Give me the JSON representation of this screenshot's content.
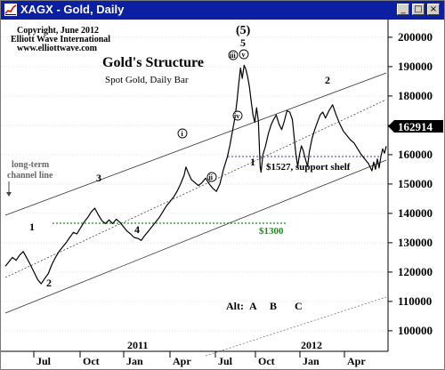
{
  "window": {
    "title": "XAGX - Gold, Daily",
    "buttons": [
      "minimize",
      "maximize",
      "close"
    ]
  },
  "chart_data": {
    "type": "line",
    "title": "Gold's Structure",
    "subtitle": "Spot Gold, Daily Bar",
    "copyright": [
      "Copyright, June 2012",
      "Elliott Wave International",
      "www.elliottwave.com"
    ],
    "ylim": [
      95000,
      210000
    ],
    "y_ticks": [
      100000,
      110000,
      120000,
      130000,
      140000,
      150000,
      160000,
      170000,
      180000,
      190000,
      200000
    ],
    "y_tick_labels": [
      "100000",
      "110000",
      "120000",
      "130000",
      "140000",
      "150000",
      "160000",
      "170000",
      "180000",
      "190000",
      "200000"
    ],
    "last_price_label": "162914",
    "x_tick_labels": [
      "Jul",
      "Oct",
      "Jan",
      "Apr",
      "Jul",
      "Oct",
      "Jan",
      "Apr"
    ],
    "year_labels": [
      "2011",
      "2012"
    ],
    "series": [
      {
        "values": [
          [
            0,
            122000
          ],
          [
            4,
            123500
          ],
          [
            8,
            125000
          ],
          [
            12,
            124000
          ],
          [
            16,
            125800
          ],
          [
            20,
            127000
          ],
          [
            24,
            124800
          ],
          [
            28,
            122500
          ],
          [
            32,
            120000
          ],
          [
            36,
            117500
          ],
          [
            40,
            116000
          ],
          [
            44,
            117800
          ],
          [
            48,
            119500
          ],
          [
            52,
            122500
          ],
          [
            56,
            125000
          ],
          [
            60,
            127000
          ],
          [
            64,
            128500
          ],
          [
            68,
            130000
          ],
          [
            72,
            131800
          ],
          [
            76,
            133500
          ],
          [
            80,
            133000
          ],
          [
            84,
            135000
          ],
          [
            88,
            137000
          ],
          [
            92,
            138500
          ],
          [
            96,
            140500
          ],
          [
            100,
            141800
          ],
          [
            104,
            139500
          ],
          [
            108,
            137500
          ],
          [
            112,
            136500
          ],
          [
            116,
            137800
          ],
          [
            120,
            136500
          ],
          [
            124,
            138000
          ],
          [
            128,
            137000
          ],
          [
            132,
            135500
          ],
          [
            136,
            134000
          ],
          [
            140,
            133000
          ],
          [
            144,
            131800
          ],
          [
            148,
            131500
          ],
          [
            152,
            130800
          ],
          [
            156,
            132500
          ],
          [
            160,
            134000
          ],
          [
            164,
            135500
          ],
          [
            168,
            137000
          ],
          [
            172,
            138500
          ],
          [
            176,
            140500
          ],
          [
            180,
            142500
          ],
          [
            184,
            144000
          ],
          [
            188,
            145500
          ],
          [
            192,
            147500
          ],
          [
            196,
            150000
          ],
          [
            200,
            153000
          ],
          [
            202,
            155800
          ],
          [
            205,
            153500
          ],
          [
            208,
            151500
          ],
          [
            212,
            150500
          ],
          [
            216,
            149500
          ],
          [
            220,
            150500
          ],
          [
            224,
            152000
          ],
          [
            228,
            150000
          ],
          [
            232,
            148500
          ],
          [
            236,
            147500
          ],
          [
            240,
            150000
          ],
          [
            244,
            155000
          ],
          [
            248,
            159000
          ],
          [
            251,
            163000
          ],
          [
            254,
            168000
          ],
          [
            257,
            173000
          ],
          [
            259,
            178000
          ],
          [
            261,
            184000
          ],
          [
            263,
            189500
          ],
          [
            265,
            186000
          ],
          [
            267,
            190500
          ],
          [
            269,
            189000
          ],
          [
            271,
            186500
          ],
          [
            273,
            183000
          ],
          [
            275,
            178000
          ],
          [
            277,
            173500
          ],
          [
            279,
            171000
          ],
          [
            281,
            176000
          ],
          [
            283,
            171500
          ],
          [
            285,
            156000
          ],
          [
            286,
            154000
          ],
          [
            288,
            160000
          ],
          [
            291,
            163000
          ],
          [
            294,
            167000
          ],
          [
            297,
            170000
          ],
          [
            300,
            172000
          ],
          [
            303,
            173500
          ],
          [
            306,
            170500
          ],
          [
            309,
            168500
          ],
          [
            312,
            171500
          ],
          [
            315,
            175000
          ],
          [
            318,
            174500
          ],
          [
            321,
            172000
          ],
          [
            323,
            166000
          ],
          [
            325,
            160000
          ],
          [
            327,
            156000
          ],
          [
            329,
            160000
          ],
          [
            331,
            163000
          ],
          [
            333,
            161500
          ],
          [
            336,
            158000
          ],
          [
            338,
            156000
          ],
          [
            340,
            161000
          ],
          [
            343,
            165500
          ],
          [
            346,
            168500
          ],
          [
            349,
            171000
          ],
          [
            352,
            173500
          ],
          [
            355,
            174500
          ],
          [
            358,
            172500
          ],
          [
            362,
            175000
          ],
          [
            366,
            177000
          ],
          [
            370,
            173500
          ],
          [
            374,
            170500
          ],
          [
            378,
            168000
          ],
          [
            382,
            166500
          ],
          [
            386,
            165000
          ],
          [
            390,
            164000
          ],
          [
            394,
            162000
          ],
          [
            398,
            160000
          ],
          [
            402,
            158500
          ],
          [
            406,
            157000
          ],
          [
            410,
            154500
          ],
          [
            412,
            157500
          ],
          [
            414,
            155000
          ],
          [
            416,
            158500
          ],
          [
            418,
            155500
          ],
          [
            420,
            159500
          ],
          [
            422,
            162000
          ],
          [
            424,
            160500
          ],
          [
            426,
            162914
          ]
        ]
      }
    ],
    "annotations": [
      "1",
      "2",
      "3",
      "4",
      "(5)",
      "5",
      "i",
      "ii",
      "iii",
      "iv",
      "v",
      "1",
      "2",
      "$1527, support shelf",
      "$1300",
      "long-term",
      "channel line",
      "Alt:",
      "A",
      "B",
      "C"
    ]
  }
}
